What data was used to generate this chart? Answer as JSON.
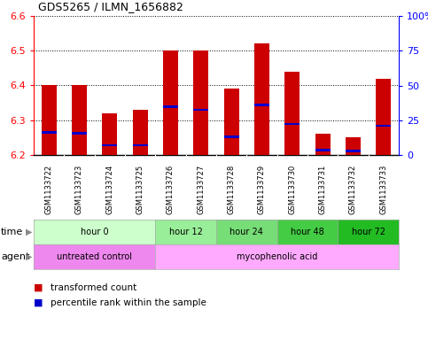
{
  "title": "GDS5265 / ILMN_1656882",
  "samples": [
    "GSM1133722",
    "GSM1133723",
    "GSM1133724",
    "GSM1133725",
    "GSM1133726",
    "GSM1133727",
    "GSM1133728",
    "GSM1133729",
    "GSM1133730",
    "GSM1133731",
    "GSM1133732",
    "GSM1133733"
  ],
  "bar_bottom": 6.2,
  "transformed_counts": [
    6.4,
    6.4,
    6.32,
    6.33,
    6.5,
    6.5,
    6.39,
    6.52,
    6.44,
    6.26,
    6.25,
    6.42
  ],
  "percentile_values": [
    6.265,
    6.263,
    6.228,
    6.228,
    6.338,
    6.33,
    6.252,
    6.343,
    6.289,
    6.214,
    6.212,
    6.284
  ],
  "ylim": [
    6.2,
    6.6
  ],
  "y2lim": [
    0,
    100
  ],
  "yticks": [
    6.2,
    6.3,
    6.4,
    6.5,
    6.6
  ],
  "y2ticks": [
    0,
    25,
    50,
    75,
    100
  ],
  "time_groups": [
    {
      "label": "hour 0",
      "start": 0,
      "end": 4,
      "color": "#ccffcc"
    },
    {
      "label": "hour 12",
      "start": 4,
      "end": 6,
      "color": "#99ee99"
    },
    {
      "label": "hour 24",
      "start": 6,
      "end": 8,
      "color": "#77dd77"
    },
    {
      "label": "hour 48",
      "start": 8,
      "end": 10,
      "color": "#44cc44"
    },
    {
      "label": "hour 72",
      "start": 10,
      "end": 12,
      "color": "#22bb22"
    }
  ],
  "agent_groups": [
    {
      "label": "untreated control",
      "start": 0,
      "end": 4,
      "color": "#ee88ee"
    },
    {
      "label": "mycophenolic acid",
      "start": 4,
      "end": 12,
      "color": "#ffaaff"
    }
  ],
  "bar_color": "#cc0000",
  "percentile_color": "#0000cc",
  "background_color": "#ffffff",
  "legend_items": [
    {
      "label": "transformed count",
      "color": "#cc0000"
    },
    {
      "label": "percentile rank within the sample",
      "color": "#0000cc"
    }
  ],
  "sample_bg_color": "#cccccc",
  "arrow_color": "#888888"
}
